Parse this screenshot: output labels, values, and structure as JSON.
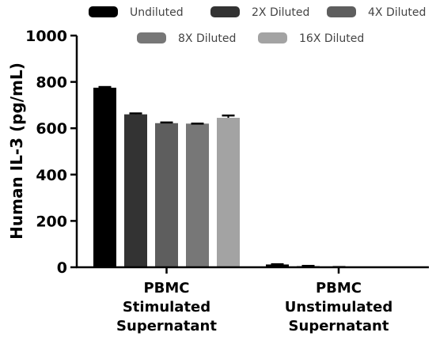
{
  "chart_data": {
    "type": "bar",
    "title": "",
    "xlabel": "",
    "ylabel": "Human IL-3 (pg/mL)",
    "ylim": [
      0,
      1000
    ],
    "yticks": [
      0,
      200,
      400,
      600,
      800,
      1000
    ],
    "categories": [
      [
        "PBMC",
        "Stimulated",
        "Supernatant"
      ],
      [
        "PBMC",
        "Unstimulated",
        "Supernatant"
      ]
    ],
    "legend": "top",
    "grid": false,
    "series": [
      {
        "name": "Undiluted",
        "color": "#000000",
        "values": [
          775,
          12
        ],
        "errors": [
          3,
          1
        ]
      },
      {
        "name": "2X Diluted",
        "color": "#333333",
        "values": [
          660,
          5
        ],
        "errors": [
          4,
          1
        ]
      },
      {
        "name": "4X Diluted",
        "color": "#5e5e5e",
        "values": [
          622,
          1
        ],
        "errors": [
          3,
          0
        ]
      },
      {
        "name": "8X Diluted",
        "color": "#777777",
        "values": [
          620,
          0
        ],
        "errors": [
          0,
          0
        ]
      },
      {
        "name": "16X Diluted",
        "color": "#a3a3a3",
        "values": [
          645,
          0
        ],
        "errors": [
          10,
          0
        ]
      }
    ]
  }
}
